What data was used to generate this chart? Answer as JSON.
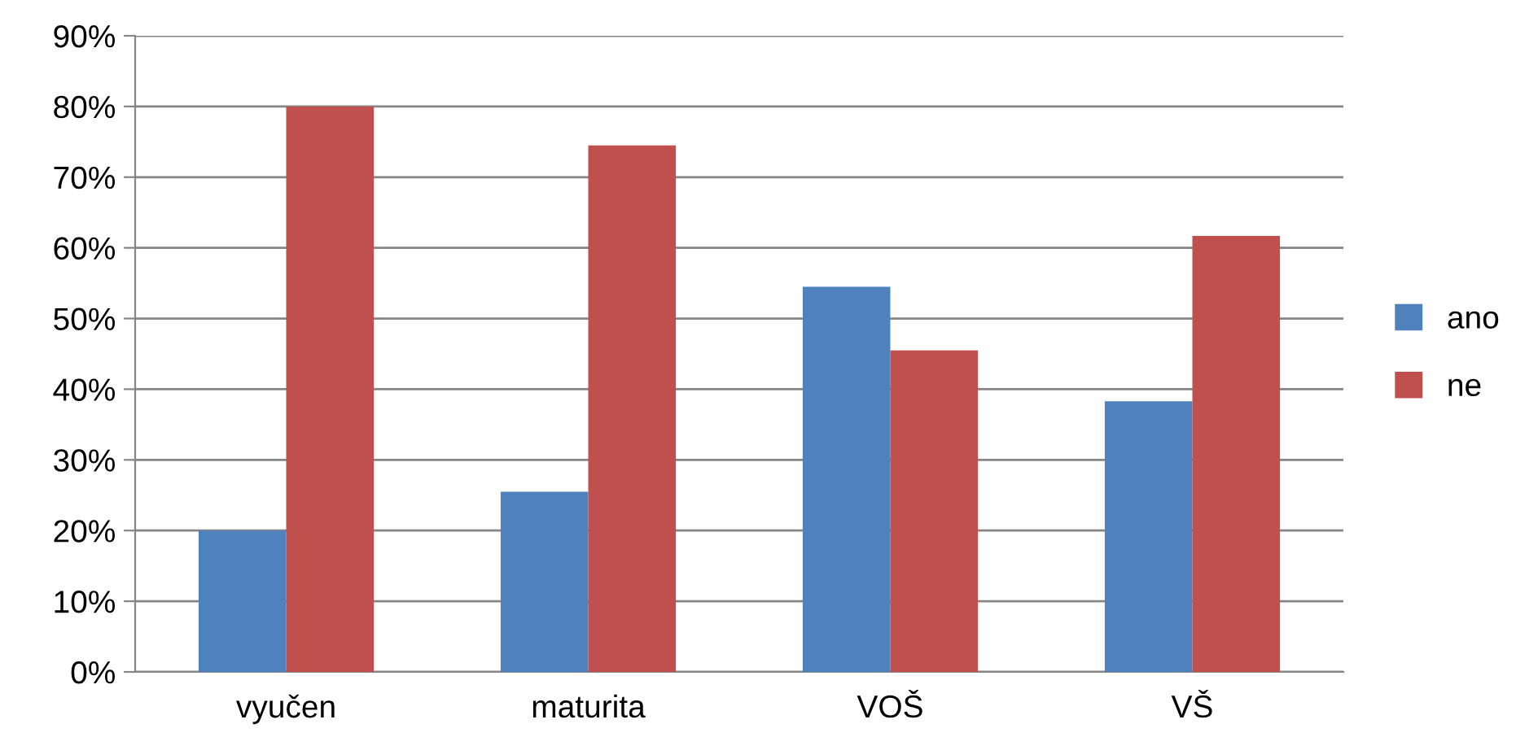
{
  "chart_data": {
    "type": "bar",
    "categories": [
      "vyučen",
      "maturita",
      "VOŠ",
      "VŠ"
    ],
    "series": [
      {
        "name": "ano",
        "color": "#4f81bd",
        "values": [
          20,
          25.5,
          54.5,
          38.3
        ]
      },
      {
        "name": "ne",
        "color": "#c0504d",
        "values": [
          80,
          74.5,
          45.5,
          61.7
        ]
      }
    ],
    "ylim": [
      0,
      90
    ],
    "yticks": [
      {
        "value": 0,
        "label": "0%"
      },
      {
        "value": 10,
        "label": "10%"
      },
      {
        "value": 20,
        "label": "20%"
      },
      {
        "value": 30,
        "label": "30%"
      },
      {
        "value": 40,
        "label": "40%"
      },
      {
        "value": 50,
        "label": "50%"
      },
      {
        "value": 60,
        "label": "60%"
      },
      {
        "value": 70,
        "label": "70%"
      },
      {
        "value": 80,
        "label": "80%"
      },
      {
        "value": 90,
        "label": "90%"
      }
    ],
    "grid": "y",
    "legend": "right"
  }
}
